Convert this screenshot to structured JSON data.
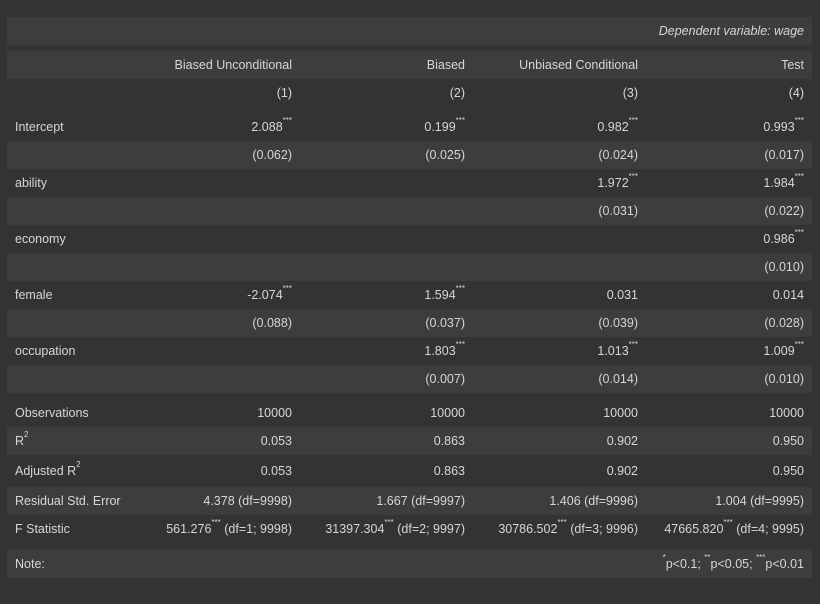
{
  "header": {
    "dependent_variable": "Dependent variable: wage",
    "columns": [
      "Biased Unconditional",
      "Biased",
      "Unbiased Conditional",
      "Test"
    ],
    "column_numbers": [
      "(1)",
      "(2)",
      "(3)",
      "(4)"
    ]
  },
  "rows": {
    "intercept": {
      "label": "Intercept",
      "coef": [
        "2.088",
        "0.199",
        "0.982",
        "0.993"
      ],
      "stars": [
        "***",
        "***",
        "***",
        "***"
      ],
      "se": [
        "(0.062)",
        "(0.025)",
        "(0.024)",
        "(0.017)"
      ]
    },
    "ability": {
      "label": "ability",
      "coef": [
        "",
        "",
        "1.972",
        "1.984"
      ],
      "stars": [
        "",
        "",
        "***",
        "***"
      ],
      "se": [
        "",
        "",
        "(0.031)",
        "(0.022)"
      ]
    },
    "economy": {
      "label": "economy",
      "coef": [
        "",
        "",
        "",
        "0.986"
      ],
      "stars": [
        "",
        "",
        "",
        "***"
      ],
      "se": [
        "",
        "",
        "",
        "(0.010)"
      ]
    },
    "female": {
      "label": "female",
      "coef": [
        "-2.074",
        "1.594",
        "0.031",
        "0.014"
      ],
      "stars": [
        "***",
        "***",
        "",
        ""
      ],
      "se": [
        "(0.088)",
        "(0.037)",
        "(0.039)",
        "(0.028)"
      ]
    },
    "occupation": {
      "label": "occupation",
      "coef": [
        "",
        "1.803",
        "1.013",
        "1.009"
      ],
      "stars": [
        "",
        "***",
        "***",
        "***"
      ],
      "se": [
        "",
        "(0.007)",
        "(0.014)",
        "(0.010)"
      ]
    }
  },
  "stats": {
    "observations": {
      "label": "Observations",
      "values": [
        "10000",
        "10000",
        "10000",
        "10000"
      ]
    },
    "r2": {
      "label": "R",
      "sup": "2",
      "values": [
        "0.053",
        "0.863",
        "0.902",
        "0.950"
      ]
    },
    "adj_r2": {
      "label": "Adjusted R",
      "sup": "2",
      "values": [
        "0.053",
        "0.863",
        "0.902",
        "0.950"
      ]
    },
    "rse": {
      "label": "Residual Std. Error",
      "values": [
        "4.378 (df=9998)",
        "1.667 (df=9997)",
        "1.406 (df=9996)",
        "1.004 (df=9995)"
      ]
    },
    "fstat": {
      "label": "F Statistic",
      "values": [
        "561.276",
        "31397.304",
        "30786.502",
        "47665.820"
      ],
      "stars": [
        "***",
        "***",
        "***",
        "***"
      ],
      "df": [
        "(df=1; 9998)",
        "(df=2; 9997)",
        "(df=3; 9996)",
        "(df=4; 9995)"
      ]
    }
  },
  "note": {
    "label": "Note:",
    "s1": "*",
    "t1": "p<0.1; ",
    "s2": "**",
    "t2": "p<0.05; ",
    "s3": "***",
    "t3": "p<0.01"
  }
}
